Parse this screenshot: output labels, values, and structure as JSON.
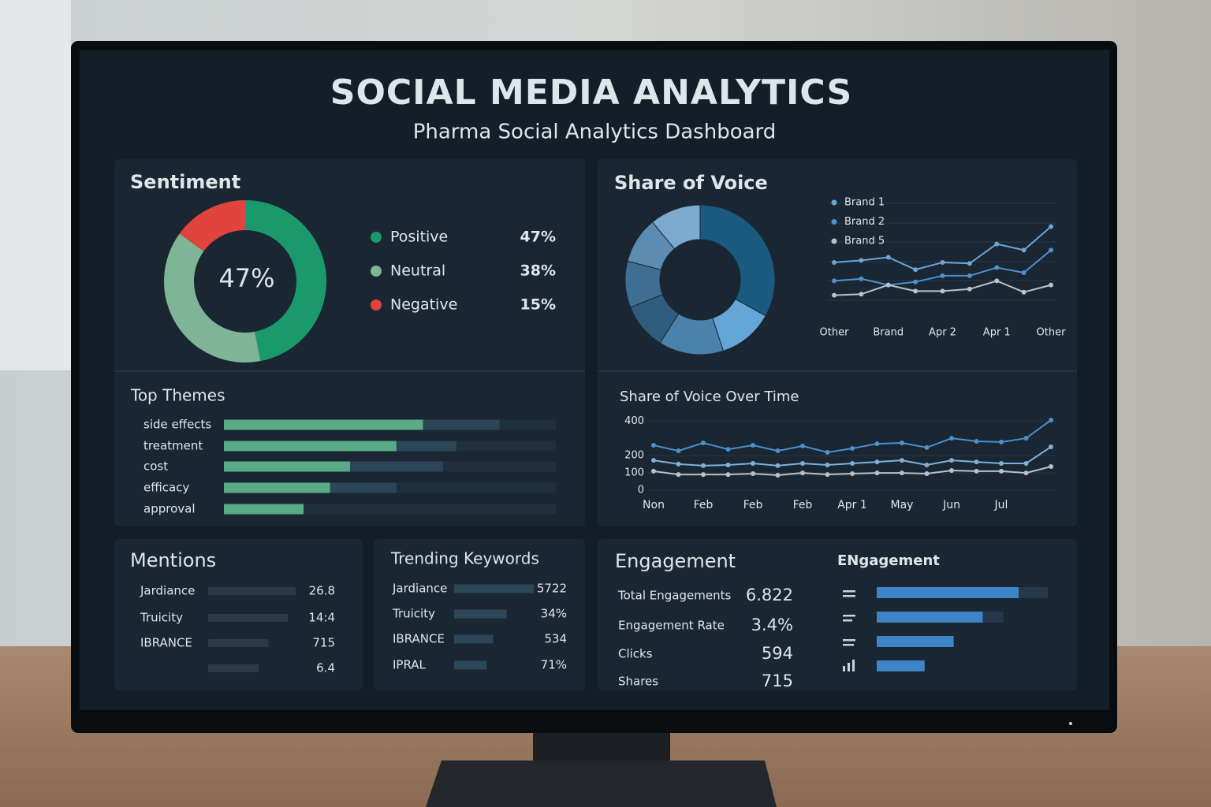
{
  "header": {
    "title": "SOCIAL MEDIA ANALYTICS",
    "subtitle": "Pharma Social Analytics Dashboard"
  },
  "sentiment": {
    "type": "pie",
    "title": "Sentiment",
    "center_label": "47%",
    "categories": [
      "Positive",
      "Neutral",
      "Negative"
    ],
    "values": [
      47,
      38,
      15
    ],
    "value_labels": [
      "47%",
      "38%",
      "15%"
    ],
    "colors": [
      "#1a9a6c",
      "#7fb597",
      "#e0443c"
    ]
  },
  "top_themes": {
    "type": "bar",
    "title": "Top Themes",
    "categories": [
      "side effects",
      "treatment",
      "cost",
      "efficacy",
      "approval"
    ],
    "series": [
      {
        "color": "#58ab85",
        "values": [
          60,
          52,
          38,
          32,
          24
        ]
      },
      {
        "color": "#2c4658",
        "values": [
          23,
          18,
          28,
          20,
          0
        ]
      }
    ],
    "xlim": [
      0,
      100
    ],
    "track_color": "#202f3c"
  },
  "share_of_voice": {
    "type": "pie",
    "title": "Share of Voice",
    "values": [
      33,
      12,
      14,
      10,
      10,
      10,
      11
    ],
    "colors": [
      "#1a5a80",
      "#64a6d6",
      "#4a82ab",
      "#2f5d7e",
      "#3e6f93",
      "#5c8cb1",
      "#7ba9cf"
    ]
  },
  "share_trend": {
    "type": "line",
    "categories": [
      "Other",
      null,
      "Brand",
      null,
      "Apr 2",
      null,
      "Apr 1",
      null,
      "Other"
    ],
    "series": [
      {
        "name": "Brand 1",
        "color": "#6aa6d8",
        "values": [
          40,
          42,
          45,
          33,
          40,
          39,
          58,
          52,
          75
        ]
      },
      {
        "name": "Brand 2",
        "color": "#4e90cc",
        "values": [
          22,
          24,
          18,
          21,
          27,
          27,
          35,
          30,
          52
        ]
      },
      {
        "name": "Brand 5",
        "color": "#b8c4cc",
        "values": [
          8,
          9,
          18,
          12,
          12,
          14,
          22,
          11,
          18
        ]
      }
    ],
    "ylim": [
      0,
      100
    ]
  },
  "sov_over_time": {
    "type": "line",
    "title": "Share of Voice Over Time",
    "categories": [
      "Non",
      null,
      "Feb",
      null,
      "Feb",
      null,
      "Feb",
      null,
      "Apr 1",
      null,
      "May",
      null,
      "Jun",
      null,
      "Jul",
      null,
      null
    ],
    "series": [
      {
        "color": "#4a8fcf",
        "values": [
          260,
          228,
          274,
          237,
          260,
          228,
          256,
          219,
          242,
          269,
          274,
          247,
          301,
          283,
          279,
          301,
          406
        ]
      },
      {
        "color": "#7fb0da",
        "values": [
          173,
          151,
          142,
          146,
          155,
          142,
          155,
          146,
          155,
          164,
          173,
          146,
          173,
          164,
          155,
          155,
          251
        ]
      },
      {
        "color": "#b5c2cc",
        "values": [
          110,
          91,
          91,
          91,
          96,
          87,
          100,
          91,
          96,
          100,
          100,
          96,
          114,
          110,
          110,
          100,
          137
        ]
      }
    ],
    "ylim": [
      0,
      420
    ],
    "yticks": [
      0,
      100,
      200,
      400
    ],
    "grid": true
  },
  "mentions": {
    "title": "Mentions",
    "rows": [
      {
        "name": "Jardiance",
        "value": "26.8",
        "bar": 100
      },
      {
        "name": "Truicity",
        "value": "14:4",
        "bar": 91
      },
      {
        "name": "IBRANCE",
        "value": "715",
        "bar": 69
      },
      {
        "name": null,
        "value": "6.4",
        "bar": 58
      }
    ],
    "color": "#2a3a48"
  },
  "trending_keywords": {
    "title": "Trending Keywords",
    "rows": [
      {
        "name": "Jardiance",
        "value": "5722",
        "bar": 100
      },
      {
        "name": "Truicity",
        "value": "34%",
        "bar": 66
      },
      {
        "name": "IBRANCE",
        "value": "534",
        "bar": 49
      },
      {
        "name": "IPRAL",
        "value": "71%",
        "bar": 41
      }
    ],
    "color": "#2d4658"
  },
  "engagement": {
    "title": "Engagement",
    "metrics": [
      {
        "name": "Total Engagements",
        "value": "6.822"
      },
      {
        "name": "Engagement Rate",
        "value": "3.4%"
      },
      {
        "name": "Clicks",
        "value": "594"
      },
      {
        "name": "Shares",
        "value": "715"
      }
    ]
  },
  "engagement_bars": {
    "type": "bar",
    "title": "ENgagement",
    "series": [
      {
        "color": "#3d85c6",
        "values": [
          83,
          62,
          45,
          28
        ]
      },
      {
        "color": "#24384a",
        "values": [
          17,
          12,
          0,
          0
        ]
      }
    ],
    "xlim": [
      0,
      100
    ]
  }
}
